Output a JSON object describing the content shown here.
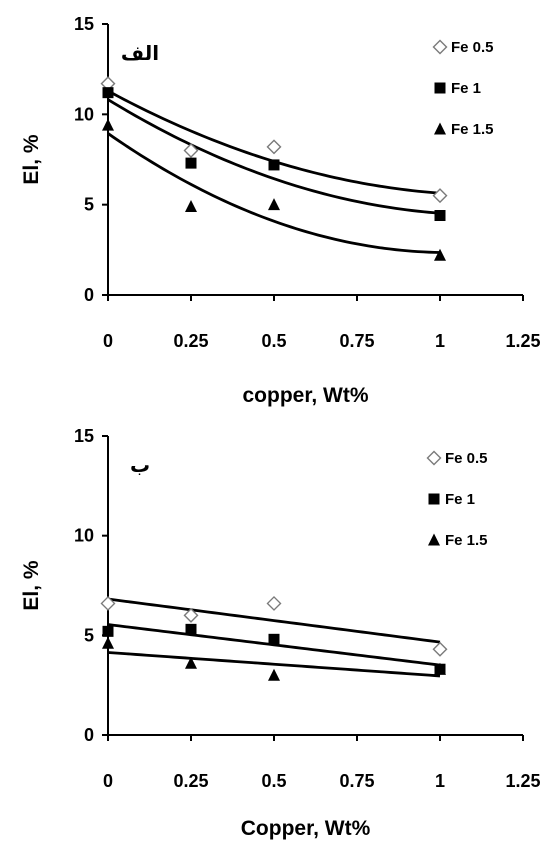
{
  "chart_data": [
    {
      "type": "scatter",
      "panel_label": "الف",
      "xlabel": "copper, Wt%",
      "ylabel": "El, %",
      "xlim": [
        0,
        1.25
      ],
      "ylim": [
        0,
        15
      ],
      "xticks": [
        "0",
        "0.25",
        "0.5",
        "0.75",
        "1",
        "1.25"
      ],
      "yticks": [
        "0",
        "5",
        "10",
        "15"
      ],
      "legend_position": "top-right",
      "x": [
        0,
        0.25,
        0.5,
        1
      ],
      "series": [
        {
          "name": "Fe 0.5",
          "marker": "diamond-open",
          "values": [
            11.7,
            8.0,
            8.2,
            5.5
          ],
          "trend": "poly2"
        },
        {
          "name": "Fe 1",
          "marker": "square",
          "values": [
            11.2,
            7.3,
            7.2,
            4.4
          ],
          "trend": "poly2"
        },
        {
          "name": "Fe 1.5",
          "marker": "triangle",
          "values": [
            9.4,
            4.9,
            5.0,
            2.2
          ],
          "trend": "poly2"
        }
      ]
    },
    {
      "type": "scatter",
      "panel_label": "ب",
      "xlabel": "Copper, Wt%",
      "ylabel": "El, %",
      "xlim": [
        0,
        1.25
      ],
      "ylim": [
        0,
        15
      ],
      "xticks": [
        "0",
        "0.25",
        "0.5",
        "0.75",
        "1",
        "1.25"
      ],
      "yticks": [
        "0",
        "5",
        "10",
        "15"
      ],
      "legend_position": "top-right",
      "x": [
        0,
        0.25,
        0.5,
        1
      ],
      "series": [
        {
          "name": "Fe 0.5",
          "marker": "diamond-open",
          "values": [
            6.6,
            6.0,
            6.6,
            4.3
          ],
          "trend": "linear"
        },
        {
          "name": "Fe 1",
          "marker": "square",
          "values": [
            5.2,
            5.3,
            4.8,
            3.3
          ],
          "trend": "linear"
        },
        {
          "name": "Fe 1.5",
          "marker": "triangle",
          "values": [
            4.6,
            3.6,
            3.0,
            3.3
          ],
          "trend": "linear"
        }
      ]
    }
  ]
}
